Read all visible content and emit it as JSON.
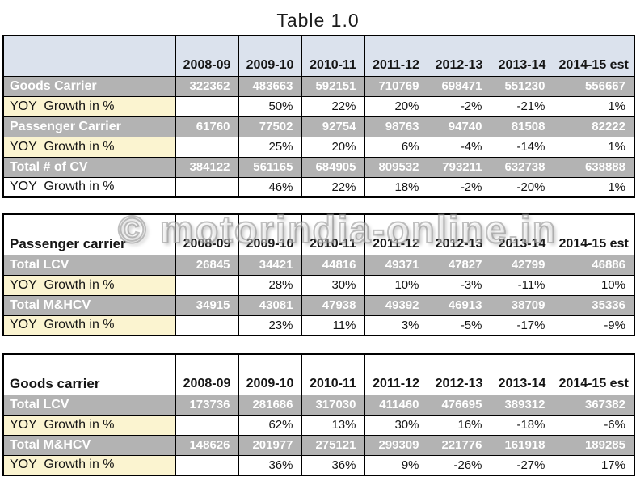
{
  "title": "Table 1.0",
  "watermark": "© motorindia-online.in",
  "colors": {
    "header_blue": "#dbe2ed",
    "row_gray": "#b3b3b3",
    "row_yellow": "#fbf4d0",
    "border": "#000000",
    "gray_row_text": "#ffffff"
  },
  "tables": [
    {
      "name": "commercial-vehicles-total",
      "header_style": "blue",
      "header": [
        "",
        "2008-09",
        "2009-10",
        "2010-11",
        "2011-12",
        "2012-13",
        "2013-14",
        "2014-15 est"
      ],
      "rows": [
        {
          "label": "Goods Carrier",
          "style": "gray",
          "values": [
            "322362",
            "483663",
            "592151",
            "710769",
            "698471",
            "551230",
            "556667"
          ]
        },
        {
          "label": "YOY  Growth in %",
          "style": "yellow",
          "values": [
            "",
            "50%",
            "22%",
            "20%",
            "-2%",
            "-21%",
            "1%"
          ]
        },
        {
          "label": "Passenger Carrier",
          "style": "gray",
          "values": [
            "61760",
            "77502",
            "92754",
            "98763",
            "94740",
            "81508",
            "82222"
          ]
        },
        {
          "label": "YOY  Growth in %",
          "style": "yellow",
          "values": [
            "",
            "25%",
            "20%",
            "6%",
            "-4%",
            "-14%",
            "1%"
          ]
        },
        {
          "label": "Total # of CV",
          "style": "gray",
          "values": [
            "384122",
            "561165",
            "684905",
            "809532",
            "793211",
            "632738",
            "638888"
          ]
        },
        {
          "label": "YOY  Growth in %",
          "style": "white",
          "values": [
            "",
            "46%",
            "22%",
            "18%",
            "-2%",
            "-20%",
            "1%"
          ]
        }
      ]
    },
    {
      "name": "passenger-carrier",
      "header_style": "white",
      "header": [
        "Passenger carrier",
        "2008-09",
        "2009-10",
        "2010-11",
        "2011-12",
        "2012-13",
        "2013-14",
        "2014-15 est"
      ],
      "rows": [
        {
          "label": "Total LCV",
          "style": "gray",
          "values": [
            "26845",
            "34421",
            "44816",
            "49371",
            "47827",
            "42799",
            "46886"
          ]
        },
        {
          "label": "YOY  Growth in %",
          "style": "yellow",
          "values": [
            "",
            "28%",
            "30%",
            "10%",
            "-3%",
            "-11%",
            "10%"
          ]
        },
        {
          "label": "Total M&HCV",
          "style": "gray",
          "values": [
            "34915",
            "43081",
            "47938",
            "49392",
            "46913",
            "38709",
            "35336"
          ]
        },
        {
          "label": "YOY  Growth in %",
          "style": "yellow",
          "values": [
            "",
            "23%",
            "11%",
            "3%",
            "-5%",
            "-17%",
            "-9%"
          ]
        }
      ]
    },
    {
      "name": "goods-carrier",
      "header_style": "white",
      "header": [
        "Goods carrier",
        "2008-09",
        "2009-10",
        "2010-11",
        "2011-12",
        "2012-13",
        "2013-14",
        "2014-15 est"
      ],
      "rows": [
        {
          "label": "Total LCV",
          "style": "gray",
          "values": [
            "173736",
            "281686",
            "317030",
            "411460",
            "476695",
            "389312",
            "367382"
          ]
        },
        {
          "label": "YOY  Growth in %",
          "style": "yellow",
          "values": [
            "",
            "62%",
            "13%",
            "30%",
            "16%",
            "-18%",
            "-6%"
          ]
        },
        {
          "label": "Total M&HCV",
          "style": "gray",
          "values": [
            "148626",
            "201977",
            "275121",
            "299309",
            "221776",
            "161918",
            "189285"
          ]
        },
        {
          "label": "YOY  Growth in %",
          "style": "yellow",
          "values": [
            "",
            "36%",
            "36%",
            "9%",
            "-26%",
            "-27%",
            "17%"
          ]
        }
      ]
    }
  ]
}
